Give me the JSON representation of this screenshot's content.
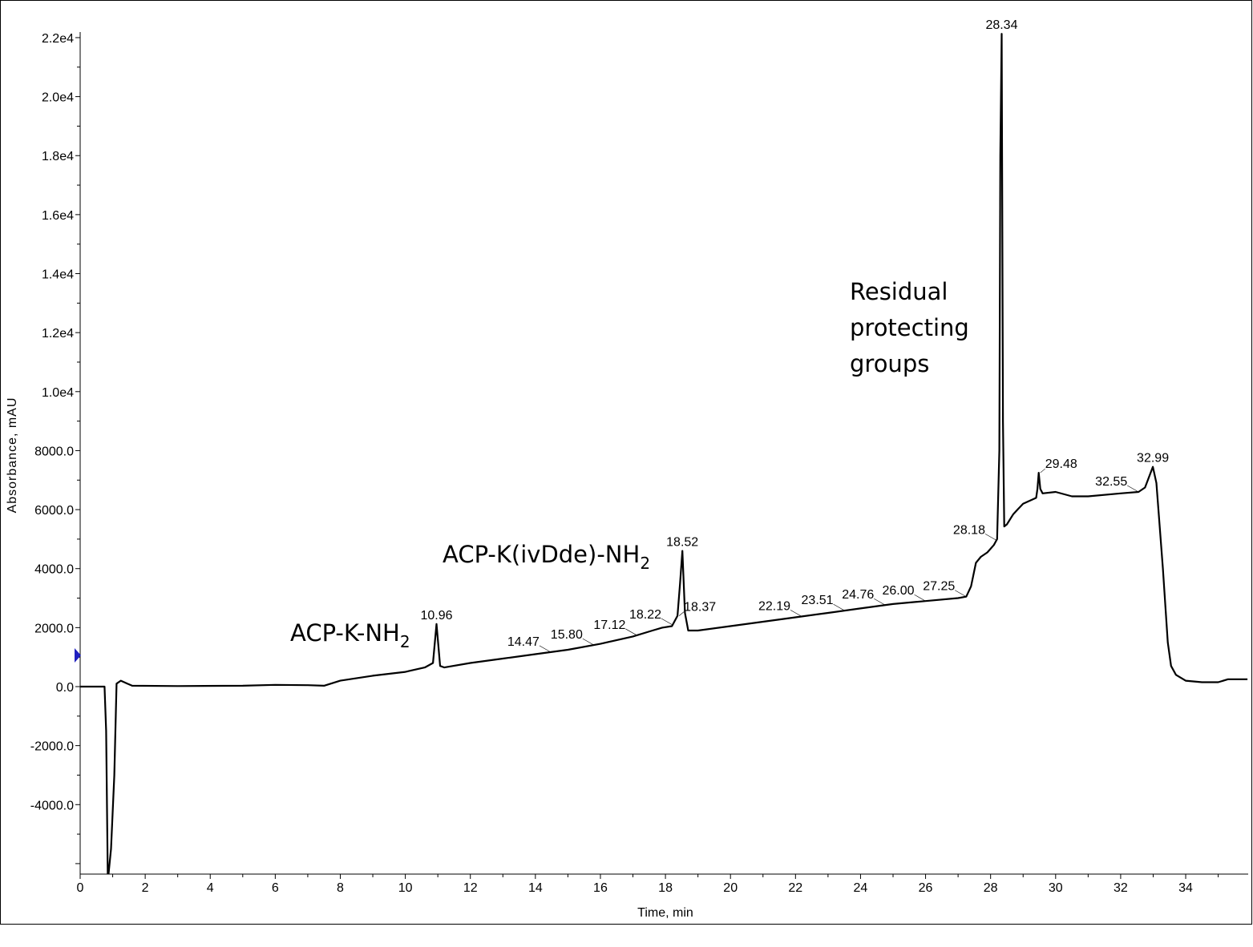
{
  "chart_data": {
    "type": "line",
    "xlabel": "Time, min",
    "ylabel": "Absorbance, mAU",
    "xlim": [
      0,
      35.9
    ],
    "ylim": [
      -6360,
      22200
    ],
    "grid": false,
    "x_ticks": [
      0,
      2,
      4,
      6,
      8,
      10,
      12,
      14,
      16,
      18,
      20,
      22,
      24,
      26,
      28,
      30,
      32,
      34
    ],
    "x_tick_labels": [
      "0",
      "2",
      "4",
      "6",
      "8",
      "10",
      "12",
      "14",
      "16",
      "18",
      "20",
      "22",
      "24",
      "26",
      "28",
      "30",
      "32",
      "34"
    ],
    "y_ticks": [
      -4000,
      -2000,
      0,
      2000,
      4000,
      6000,
      8000,
      10000,
      12000,
      14000,
      16000,
      18000,
      20000,
      22000
    ],
    "y_tick_labels": [
      "-4000.0",
      "-2000.0",
      "0.0",
      "2000.0",
      "4000.0",
      "6000.0",
      "8000.0",
      "1.0e4",
      "1.2e4",
      "1.4e4",
      "1.6e4",
      "1.8e4",
      "2.0e4",
      "2.2e4"
    ],
    "series": [
      {
        "color": "#000000",
        "x": [
          0,
          0.75,
          0.8,
          0.85,
          0.95,
          1.05,
          1.12,
          1.25,
          1.45,
          1.6,
          3,
          5,
          6,
          7,
          7.5,
          8,
          9,
          10,
          10.6,
          10.85,
          10.96,
          11.07,
          11.2,
          12,
          13,
          14,
          15,
          16,
          17,
          17.6,
          17.9,
          18.2,
          18.37,
          18.45,
          18.52,
          18.6,
          18.7,
          19,
          20,
          21,
          22,
          23,
          24,
          25,
          26,
          27,
          27.25,
          27.4,
          27.55,
          27.7,
          27.9,
          28.1,
          28.2,
          28.27,
          28.3,
          28.34,
          28.38,
          28.42,
          28.5,
          28.7,
          29,
          29.4,
          29.44,
          29.48,
          29.53,
          29.6,
          30,
          30.5,
          31,
          32,
          32.55,
          32.75,
          32.99,
          33.1,
          33.3,
          33.45,
          33.55,
          33.7,
          34,
          34.5,
          35,
          35.3,
          35.9
        ],
        "y": [
          0,
          0,
          -1500,
          -6600,
          -5500,
          -3000,
          100,
          200,
          100,
          30,
          20,
          30,
          60,
          50,
          30,
          200,
          370,
          500,
          650,
          800,
          2120,
          700,
          650,
          800,
          950,
          1100,
          1250,
          1450,
          1700,
          1900,
          2000,
          2050,
          2400,
          3500,
          4600,
          2500,
          1900,
          1900,
          2050,
          2200,
          2350,
          2500,
          2650,
          2800,
          2900,
          3000,
          3050,
          3400,
          4200,
          4400,
          4550,
          4800,
          5000,
          8000,
          18000,
          22130,
          9000,
          5430,
          5500,
          5850,
          6200,
          6400,
          6700,
          7250,
          6700,
          6550,
          6600,
          6450,
          6450,
          6550,
          6600,
          6750,
          7450,
          6900,
          4000,
          1500,
          700,
          400,
          200,
          150,
          150,
          250,
          250
        ]
      }
    ],
    "peak_labels": [
      "10.96",
      "14.47",
      "15.80",
      "17.12",
      "18.22",
      "18.37",
      "18.52",
      "22.19",
      "23.51",
      "24.76",
      "26.00",
      "27.25",
      "28.18",
      "28.34",
      "29.48",
      "32.55",
      "32.99"
    ],
    "annotations": [
      {
        "text": "ACP-K-NH",
        "subscript": "2"
      },
      {
        "text": "ACP-K(ivDde)-NH",
        "subscript": "2"
      },
      {
        "lines": [
          "Residual",
          "protecting",
          "groups"
        ]
      }
    ],
    "marker_color": "#1f1fbf"
  }
}
